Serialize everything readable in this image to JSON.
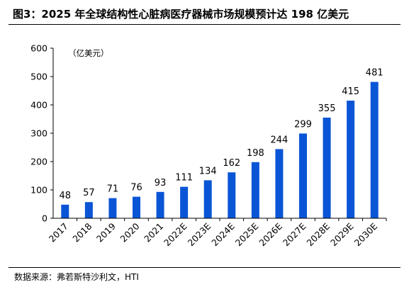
{
  "header": {
    "title": "图3：2025 年全球结构性心脏病医疗器械市场规模预计达 198 亿美元"
  },
  "footer": {
    "source": "数据来源：弗若斯特沙利文，HTI"
  },
  "chart_data": {
    "type": "bar",
    "unit_label": "（亿美元）",
    "categories": [
      "2017",
      "2018",
      "2019",
      "2020",
      "2021",
      "2022E",
      "2023E",
      "2024E",
      "2025E",
      "2026E",
      "2027E",
      "2028E",
      "2029E",
      "2030E"
    ],
    "values": [
      48,
      57,
      71,
      76,
      93,
      111,
      134,
      162,
      198,
      244,
      299,
      355,
      415,
      481
    ],
    "yticks": [
      0,
      100,
      200,
      300,
      400,
      500,
      600
    ],
    "ylim": [
      0,
      600
    ],
    "bar_color": "#0a55d6",
    "grid": false,
    "legend": "none"
  }
}
